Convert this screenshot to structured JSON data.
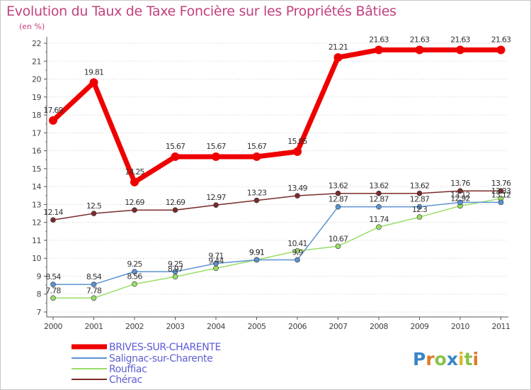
{
  "chart_data": {
    "type": "line",
    "title": "Evolution du Taux de Taxe Foncière sur les Propriétés Bâties",
    "ylabel": "(en %)",
    "xlabel": "",
    "categories": [
      "2000",
      "2001",
      "2002",
      "2003",
      "2004",
      "2005",
      "2006",
      "2007",
      "2008",
      "2009",
      "2010",
      "2011"
    ],
    "ylim": [
      7,
      22
    ],
    "yticks": [
      "7",
      "8",
      "9",
      "10",
      "11",
      "12",
      "13",
      "14",
      "15",
      "16",
      "17",
      "18",
      "19",
      "20",
      "21",
      "22"
    ],
    "grid": "horizontal dotted",
    "legend_position": "bottom-left",
    "series": [
      {
        "name": "BRIVES-SUR-CHARENTE",
        "color": "#ee0000",
        "values": [
          17.69,
          19.81,
          14.25,
          15.67,
          15.67,
          15.67,
          15.95,
          21.21,
          21.63,
          21.63,
          21.63,
          21.63
        ],
        "labels": [
          "17.69",
          "19.81",
          "14.25",
          "15.67",
          "15.67",
          "15.67",
          "15.95",
          "21.21",
          "21.63",
          "21.63",
          "21.63",
          "21.63"
        ]
      },
      {
        "name": "Salignac-sur-Charente",
        "color": "#5b93d1",
        "values": [
          8.54,
          8.54,
          9.25,
          9.25,
          9.71,
          9.91,
          9.91,
          12.87,
          12.87,
          12.87,
          13.12,
          13.12
        ],
        "labels": [
          "8.54",
          "8.54",
          "9.25",
          "9.25",
          "9.71",
          "9.91",
          "9.9",
          "12.87",
          "12.87",
          "12.87",
          "13.12",
          "13.12"
        ]
      },
      {
        "name": "Rouffiac",
        "color": "#99dd66",
        "values": [
          7.78,
          7.78,
          8.56,
          8.97,
          9.44,
          9.91,
          10.41,
          10.67,
          11.74,
          12.3,
          12.92,
          13.33
        ],
        "labels": [
          "7.78",
          "7.78",
          "8.56",
          "8.97",
          "9.44",
          "9.91",
          "10.41",
          "10.67",
          "11.74",
          "12.3",
          "12.92",
          "13.33"
        ]
      },
      {
        "name": "Chérac",
        "color": "#7b2b2b",
        "values": [
          12.14,
          12.5,
          12.69,
          12.69,
          12.97,
          13.23,
          13.49,
          13.62,
          13.62,
          13.62,
          13.76,
          13.76
        ],
        "labels": [
          "12.14",
          "12.5",
          "12.69",
          "12.69",
          "12.97",
          "13.23",
          "13.49",
          "13.62",
          "13.62",
          "13.62",
          "13.76",
          "13.76"
        ]
      }
    ]
  },
  "logo": {
    "text": "Proxiti"
  },
  "colors": {
    "title": "#c2417e",
    "axis": "#555555",
    "grid": "#cccccc"
  }
}
